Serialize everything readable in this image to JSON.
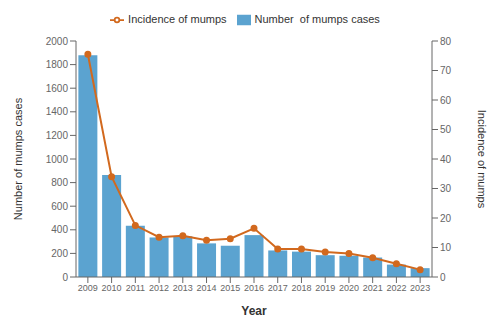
{
  "chart_data": {
    "type": "bar",
    "categories": [
      "2009",
      "2010",
      "2011",
      "2012",
      "2013",
      "2014",
      "2015",
      "2016",
      "2017",
      "2018",
      "2019",
      "2020",
      "2021",
      "2022",
      "2023"
    ],
    "x_label": "Year",
    "y_label": "Number of mumps cases",
    "y2_label": "Incidence of mumps",
    "series": [
      {
        "name": "Number  of mumps cases",
        "type": "bar",
        "color": "#5ba3d0",
        "values": [
          1880,
          865,
          435,
          335,
          345,
          285,
          265,
          355,
          225,
          215,
          185,
          180,
          165,
          105,
          75
        ]
      },
      {
        "name": "Incidence of mumps",
        "type": "line",
        "color": "#d2691e",
        "marker": "circle",
        "axis": "y2",
        "values": [
          75.5,
          34.0,
          17.5,
          13.5,
          14.0,
          12.5,
          13.0,
          16.5,
          9.5,
          9.5,
          8.5,
          8.0,
          6.5,
          4.5,
          2.5
        ]
      }
    ],
    "ylim": [
      0,
      2000
    ],
    "yticks": [
      0,
      200,
      400,
      600,
      800,
      1000,
      1200,
      1400,
      1600,
      1800,
      2000
    ],
    "y2lim": [
      0,
      80
    ],
    "y2ticks": [
      0,
      10,
      20,
      30,
      40,
      50,
      60,
      70,
      80
    ],
    "legend": "top",
    "grid": false
  }
}
